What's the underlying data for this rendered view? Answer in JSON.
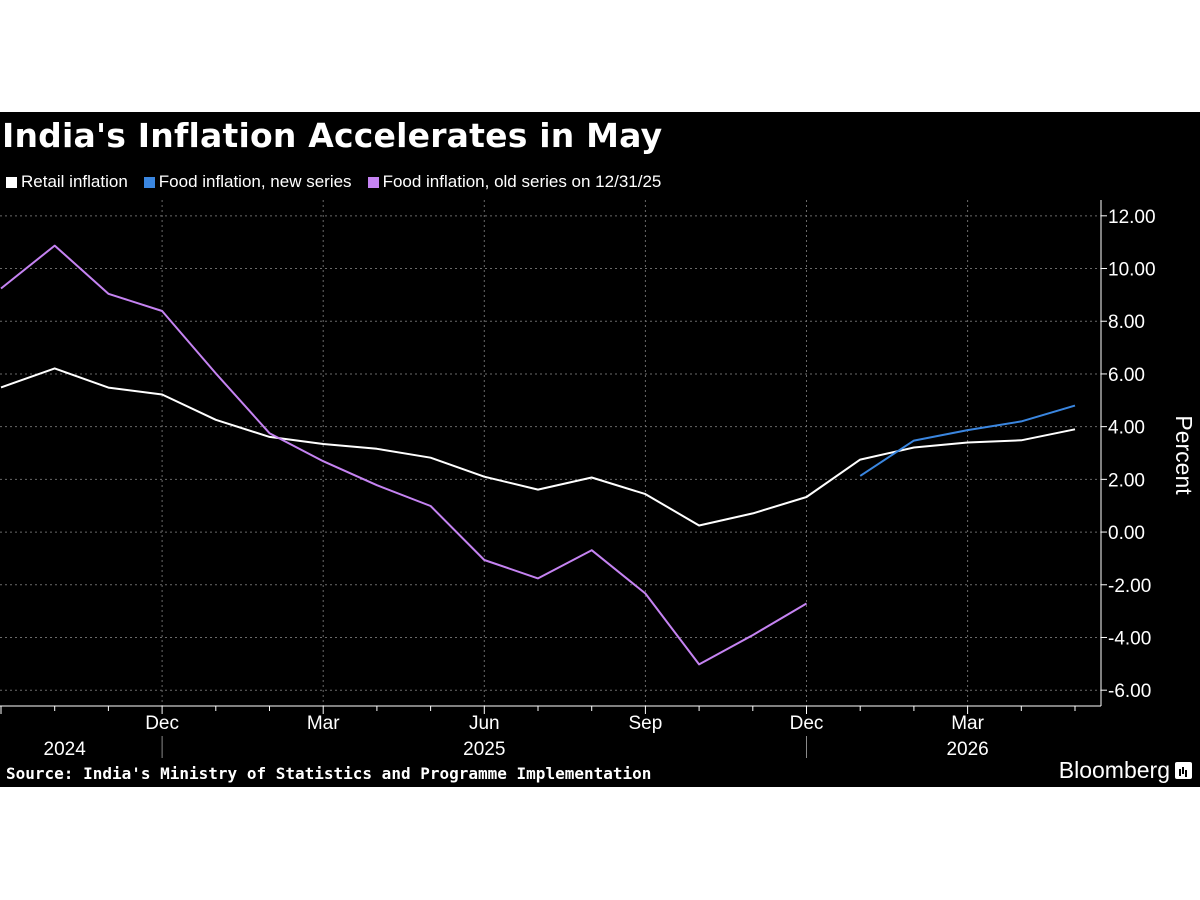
{
  "chart_data": {
    "type": "line",
    "title": "India's Inflation Accelerates in May",
    "ylabel": "Percent",
    "ylim": [
      -6.6,
      12.6
    ],
    "y_ticks": [
      "12.00",
      "10.00",
      "8.00",
      "6.00",
      "4.00",
      "2.00",
      "0.00",
      "-2.00",
      "-4.00",
      "-6.00"
    ],
    "x_range": [
      "2024-09",
      "2026-05"
    ],
    "x_tick_labels": [
      {
        "label": "Dec",
        "at": "2024-12"
      },
      {
        "label": "Mar",
        "at": "2025-03"
      },
      {
        "label": "Jun",
        "at": "2025-06"
      },
      {
        "label": "Sep",
        "at": "2025-09"
      },
      {
        "label": "Dec",
        "at": "2025-12"
      },
      {
        "label": "Mar",
        "at": "2026-03"
      }
    ],
    "year_labels": [
      {
        "label": "2024",
        "at": "2024-10"
      },
      {
        "label": "2025",
        "at": "2025-06"
      },
      {
        "label": "2026",
        "at": "2026-03"
      }
    ],
    "grid": true,
    "legend_position": "top-left",
    "series": [
      {
        "name": "Retail inflation",
        "color": "#ffffff",
        "points": [
          [
            "2024-09",
            5.49
          ],
          [
            "2024-10",
            6.21
          ],
          [
            "2024-11",
            5.48
          ],
          [
            "2024-12",
            5.22
          ],
          [
            "2025-01",
            4.26
          ],
          [
            "2025-02",
            3.61
          ],
          [
            "2025-03",
            3.34
          ],
          [
            "2025-04",
            3.16
          ],
          [
            "2025-05",
            2.82
          ],
          [
            "2025-06",
            2.1
          ],
          [
            "2025-07",
            1.61
          ],
          [
            "2025-08",
            2.07
          ],
          [
            "2025-09",
            1.44
          ],
          [
            "2025-10",
            0.25
          ],
          [
            "2025-11",
            0.71
          ],
          [
            "2025-12",
            1.33
          ],
          [
            "2026-01",
            2.75
          ],
          [
            "2026-02",
            3.21
          ],
          [
            "2026-03",
            3.4
          ],
          [
            "2026-04",
            3.48
          ],
          [
            "2026-05",
            3.9
          ]
        ]
      },
      {
        "name": "Food inflation, new series",
        "color": "#3a86e0",
        "points": [
          [
            "2026-01",
            2.13
          ],
          [
            "2026-02",
            3.47
          ],
          [
            "2026-03",
            3.87
          ],
          [
            "2026-04",
            4.2
          ],
          [
            "2026-05",
            4.8
          ]
        ]
      },
      {
        "name": "Food inflation, old series on 12/31/25",
        "color": "#c583f2",
        "points": [
          [
            "2024-09",
            9.24
          ],
          [
            "2024-10",
            10.87
          ],
          [
            "2024-11",
            9.04
          ],
          [
            "2024-12",
            8.39
          ],
          [
            "2025-01",
            6.02
          ],
          [
            "2025-02",
            3.75
          ],
          [
            "2025-03",
            2.69
          ],
          [
            "2025-04",
            1.78
          ],
          [
            "2025-05",
            0.99
          ],
          [
            "2025-06",
            -1.06
          ],
          [
            "2025-07",
            -1.76
          ],
          [
            "2025-08",
            -0.69
          ],
          [
            "2025-09",
            -2.33
          ],
          [
            "2025-10",
            -5.02
          ],
          [
            "2025-11",
            -3.91
          ],
          [
            "2025-12",
            -2.71
          ]
        ]
      }
    ]
  },
  "footer": {
    "source": "Source: India's Ministry of Statistics and Programme Implementation",
    "brand": "Bloomberg"
  },
  "colors": {
    "background": "#000000",
    "foreground": "#ffffff",
    "grid": "#6a6a6a"
  }
}
